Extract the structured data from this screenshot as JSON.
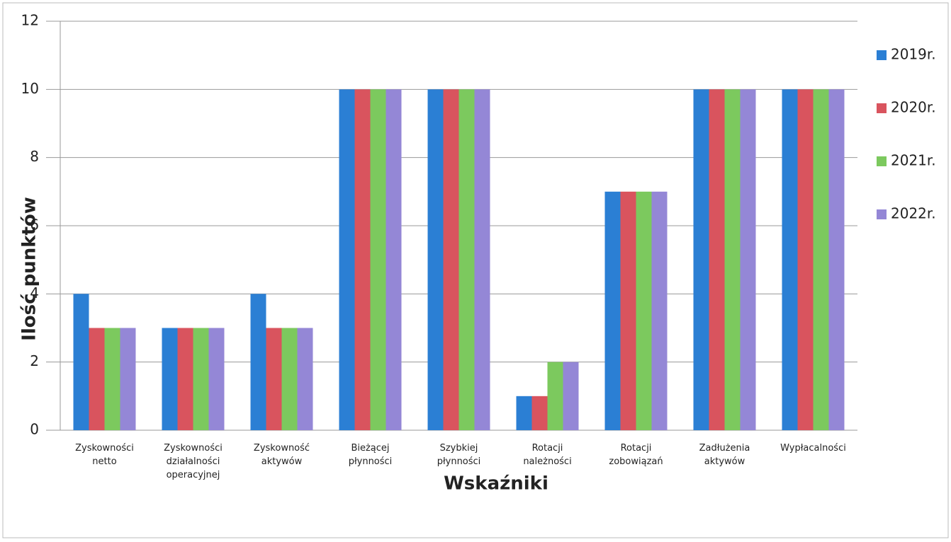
{
  "chart_data": {
    "type": "bar",
    "ylabel": "Ilość punktów",
    "xlabel": "Wskaźniki",
    "categories": [
      "Zyskowności\nnetto",
      "Zyskowności\ndziałalności\noperacyjnej",
      "Zyskowność\naktywów",
      "Bieżącej\npłynności",
      "Szybkiej\npłynności",
      "Rotacji\nnależności",
      "Rotacji\nzobowiązań",
      "Zadłużenia\naktywów",
      "Wypłacalności"
    ],
    "series": [
      {
        "name": "2019r.",
        "color": "#2b7fd4",
        "values": [
          4,
          3,
          4,
          10,
          10,
          1,
          7,
          10,
          10
        ]
      },
      {
        "name": "2020r.",
        "color": "#d9545e",
        "values": [
          3,
          3,
          3,
          10,
          10,
          1,
          7,
          10,
          10
        ]
      },
      {
        "name": "2021r.",
        "color": "#7cc95e",
        "values": [
          3,
          3,
          3,
          10,
          10,
          2,
          7,
          10,
          10
        ]
      },
      {
        "name": "2022r.",
        "color": "#9487d6",
        "values": [
          3,
          3,
          3,
          10,
          10,
          2,
          7,
          10,
          10
        ]
      }
    ],
    "ylim": [
      0,
      12
    ],
    "yticks": [
      0,
      2,
      4,
      6,
      8,
      10,
      12
    ],
    "grid": true,
    "legend": "right"
  }
}
